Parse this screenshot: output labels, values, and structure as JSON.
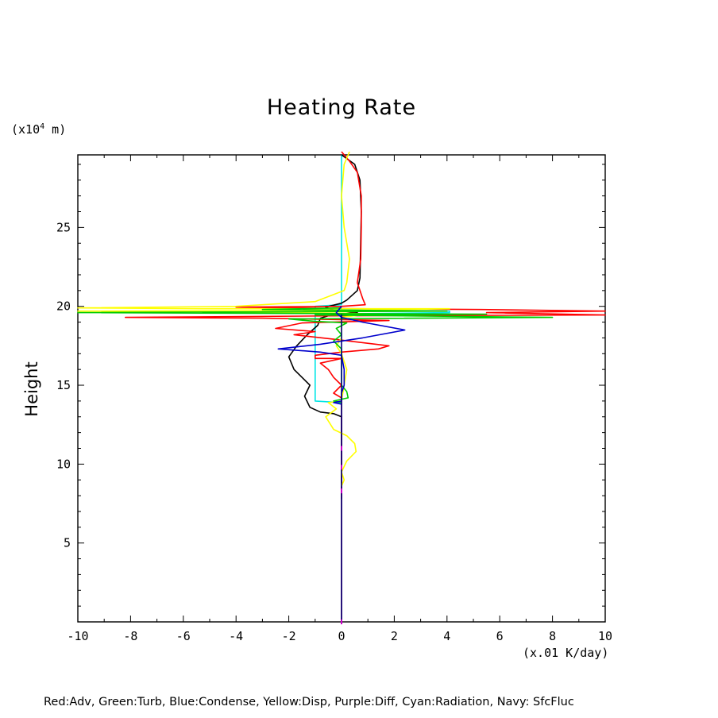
{
  "chart_data": {
    "type": "line",
    "title": "Heating Rate",
    "ylabel": "Height",
    "y_unit_prefix": "(x10",
    "y_unit_exp": "4",
    "y_unit_suffix": " m)",
    "x_unit": "(x.01 K/day)",
    "caption": "Red:Adv, Green:Turb, Blue:Condense, Yellow:Disp, Purple:Diff, Cyan:Radiation, Navy: SfcFluc",
    "xlim": [
      -10,
      10
    ],
    "ylim": [
      0,
      29.6
    ],
    "x_ticks": [
      -10,
      -8,
      -6,
      -4,
      -2,
      0,
      2,
      4,
      6,
      8,
      10
    ],
    "x_tick_labels": [
      "-10",
      "-8",
      "-6",
      "-4",
      "-2",
      "0",
      "2",
      "4",
      "6",
      "8",
      "10"
    ],
    "y_ticks": [
      5,
      10,
      15,
      20,
      25
    ],
    "y_tick_labels": [
      "5",
      "10",
      "15",
      "20",
      "25"
    ],
    "series": [
      {
        "key": "radiation",
        "color": "#00e5e5",
        "points": [
          [
            0,
            29.6
          ],
          [
            0,
            20.1
          ],
          [
            -1.0,
            20.0
          ],
          [
            -1.0,
            19.8
          ],
          [
            4.1,
            19.7
          ],
          [
            4.1,
            19.6
          ],
          [
            -1.0,
            19.5
          ],
          [
            -1.0,
            14.0
          ],
          [
            0,
            13.9
          ],
          [
            0,
            0
          ]
        ]
      },
      {
        "key": "black",
        "color": "#000000",
        "points": [
          [
            0,
            29.6
          ],
          [
            0.5,
            29.0
          ],
          [
            0.7,
            28.0
          ],
          [
            0.75,
            26.0
          ],
          [
            0.72,
            23.5
          ],
          [
            0.7,
            21.8
          ],
          [
            0.6,
            21.0
          ],
          [
            0.2,
            20.4
          ],
          [
            0,
            20.2
          ],
          [
            -0.6,
            19.95
          ],
          [
            -0.3,
            19.75
          ],
          [
            0.6,
            19.6
          ],
          [
            -0.4,
            19.45
          ],
          [
            -0.8,
            19.25
          ],
          [
            -0.9,
            18.8
          ],
          [
            -1.3,
            18.2
          ],
          [
            -1.7,
            17.5
          ],
          [
            -2.0,
            16.8
          ],
          [
            -1.8,
            16.0
          ],
          [
            -1.5,
            15.5
          ],
          [
            -1.2,
            15.0
          ],
          [
            -1.4,
            14.3
          ],
          [
            -1.2,
            13.6
          ],
          [
            -0.8,
            13.3
          ],
          [
            -0.3,
            13.2
          ],
          [
            0,
            13.0
          ],
          [
            0,
            7.8
          ]
        ]
      },
      {
        "key": "adv",
        "color": "#ff0000",
        "points": [
          [
            0,
            29.8
          ],
          [
            0.3,
            29.2
          ],
          [
            0.6,
            28.5
          ],
          [
            0.75,
            27.0
          ],
          [
            0.75,
            25.0
          ],
          [
            0.73,
            23.0
          ],
          [
            0.6,
            21.5
          ],
          [
            0.8,
            20.5
          ],
          [
            0.9,
            20.1
          ],
          [
            0,
            20.0
          ],
          [
            -4.0,
            19.95
          ],
          [
            0.5,
            19.85
          ],
          [
            5.3,
            19.8
          ],
          [
            10,
            19.7
          ],
          [
            5.5,
            19.6
          ],
          [
            10,
            19.45
          ],
          [
            0.2,
            19.4
          ],
          [
            -8.2,
            19.3
          ],
          [
            -3.0,
            19.25
          ],
          [
            1.8,
            19.1
          ],
          [
            -1.5,
            18.95
          ],
          [
            -2.5,
            18.6
          ],
          [
            -1.0,
            18.4
          ],
          [
            -1.8,
            18.2
          ],
          [
            -0.2,
            17.9
          ],
          [
            1.8,
            17.5
          ],
          [
            1.4,
            17.3
          ],
          [
            0,
            17.1
          ],
          [
            -1.0,
            16.9
          ],
          [
            -1.0,
            16.7
          ],
          [
            0,
            16.7
          ],
          [
            -0.8,
            16.4
          ],
          [
            -0.5,
            16.0
          ],
          [
            -0.3,
            15.5
          ],
          [
            0,
            15.0
          ],
          [
            -0.3,
            14.5
          ],
          [
            0,
            14.2
          ],
          [
            0,
            13.0
          ],
          [
            0,
            0
          ]
        ]
      },
      {
        "key": "disp",
        "color": "#ffff00",
        "points": [
          [
            0.3,
            29.8
          ],
          [
            0.1,
            29.0
          ],
          [
            0,
            27.0
          ],
          [
            0.1,
            25.0
          ],
          [
            0.3,
            23.0
          ],
          [
            0.2,
            21.5
          ],
          [
            0.1,
            21.0
          ],
          [
            -1.0,
            20.3
          ],
          [
            -4.0,
            20.0
          ],
          [
            -10,
            19.9
          ],
          [
            -5.0,
            19.85
          ],
          [
            4.1,
            19.85
          ],
          [
            0.5,
            19.75
          ],
          [
            -10,
            19.7
          ],
          [
            -2.0,
            19.6
          ],
          [
            0.5,
            19.55
          ],
          [
            1.0,
            19.5
          ],
          [
            0.5,
            19.4
          ],
          [
            0,
            19.3
          ],
          [
            0,
            18.0
          ],
          [
            -0.2,
            17.5
          ],
          [
            0,
            17.0
          ],
          [
            0.2,
            16.0
          ],
          [
            0.1,
            15.0
          ],
          [
            0,
            14.0
          ],
          [
            -0.5,
            13.9
          ],
          [
            -0.2,
            13.5
          ],
          [
            -0.6,
            13.0
          ],
          [
            -0.3,
            12.2
          ],
          [
            0.2,
            11.8
          ],
          [
            0.5,
            11.3
          ],
          [
            0.55,
            10.8
          ],
          [
            0.2,
            10.2
          ],
          [
            0,
            9.5
          ],
          [
            0.1,
            9.0
          ],
          [
            0,
            8.6
          ]
        ]
      },
      {
        "key": "turb",
        "color": "#00cc00",
        "points": [
          [
            0,
            19.9
          ],
          [
            -3.0,
            19.8
          ],
          [
            4.0,
            19.7
          ],
          [
            -10,
            19.6
          ],
          [
            5.5,
            19.5
          ],
          [
            -1.0,
            19.45
          ],
          [
            8.0,
            19.3
          ],
          [
            -2.0,
            19.2
          ],
          [
            -1.0,
            19.05
          ],
          [
            0.2,
            18.95
          ],
          [
            -0.2,
            18.6
          ],
          [
            0,
            18.2
          ],
          [
            -0.3,
            17.8
          ],
          [
            0,
            17.3
          ],
          [
            0,
            15.0
          ],
          [
            0.2,
            14.6
          ],
          [
            0.25,
            14.2
          ],
          [
            -0.3,
            14.0
          ],
          [
            0,
            13.9
          ]
        ]
      },
      {
        "key": "condense",
        "color": "#0000cc",
        "points": [
          [
            0,
            20.0
          ],
          [
            -0.2,
            19.6
          ],
          [
            0,
            19.3
          ],
          [
            0.8,
            19.0
          ],
          [
            2.4,
            18.5
          ],
          [
            0.8,
            18.0
          ],
          [
            -0.8,
            17.6
          ],
          [
            -2.4,
            17.3
          ],
          [
            -0.8,
            17.1
          ],
          [
            0,
            16.9
          ],
          [
            0.1,
            16.0
          ],
          [
            0.1,
            15.0
          ],
          [
            0,
            14.5
          ],
          [
            0,
            14.0
          ],
          [
            -0.3,
            13.9
          ],
          [
            0,
            13.8
          ]
        ]
      },
      {
        "key": "navy",
        "color": "#000080",
        "points": [
          [
            0,
            19.5
          ],
          [
            0,
            0
          ]
        ]
      }
    ],
    "purple_dashes": [
      [
        0,
        11.0
      ],
      [
        0,
        9.8
      ],
      [
        0,
        8.3
      ],
      [
        0,
        0
      ]
    ]
  }
}
